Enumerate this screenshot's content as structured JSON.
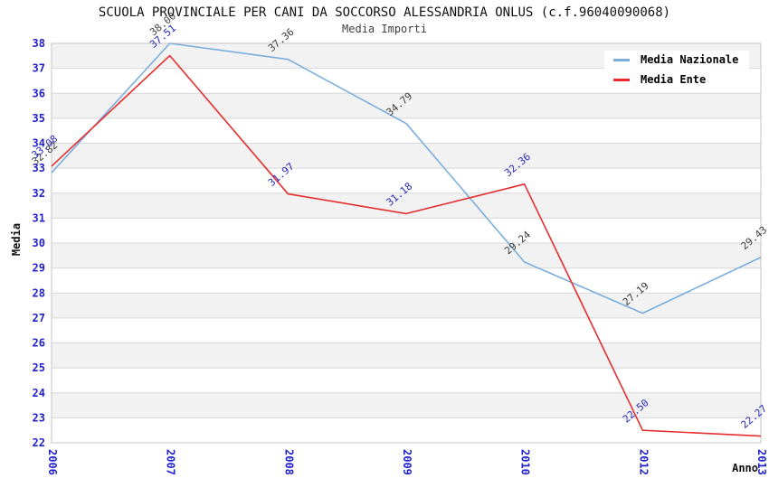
{
  "header": {
    "title": "SCUOLA PROVINCIALE PER CANI DA SOCCORSO ALESSANDRIA ONLUS (c.f.96040090068)",
    "subtitle": "Media Importi"
  },
  "axes": {
    "y_title": "Media",
    "x_title": "Anno"
  },
  "legend": {
    "position": "top-right",
    "items": [
      {
        "label": "Media Nazionale",
        "color": "#7aaede"
      },
      {
        "label": "Media Ente",
        "color": "#e62e2e"
      }
    ]
  },
  "colors": {
    "tick_label": "#2121cd",
    "band_gray": "#f2f2f2",
    "gridline": "#d8d8d8",
    "frame": "#c4c4c4",
    "title": "#111111",
    "subtitle": "#3f3f3f"
  },
  "chart_data": {
    "type": "line",
    "title": "SCUOLA PROVINCIALE PER CANI DA SOCCORSO ALESSANDRIA ONLUS (c.f.96040090068)",
    "subtitle": "Media Importi",
    "xlabel": "Anno",
    "ylabel": "Media",
    "x_categories": [
      "2006",
      "2007",
      "2008",
      "2009",
      "2010",
      "2012",
      "2013"
    ],
    "ylim": [
      22,
      38
    ],
    "ytick_step": 1,
    "grid": "horizontal",
    "background_bands": "alternating-gray-on-odd",
    "legend_position": "top-right",
    "series": [
      {
        "name": "Media Nazionale",
        "color": "#7aaede",
        "label_color": "#3d3d3d",
        "values": [
          32.82,
          38.0,
          37.36,
          34.79,
          29.24,
          27.19,
          29.43
        ]
      },
      {
        "name": "Media Ente",
        "color": "#e62e2e",
        "label_color": "#2626bb",
        "values": [
          33.08,
          37.51,
          31.97,
          31.18,
          32.36,
          22.5,
          22.27
        ]
      }
    ]
  }
}
